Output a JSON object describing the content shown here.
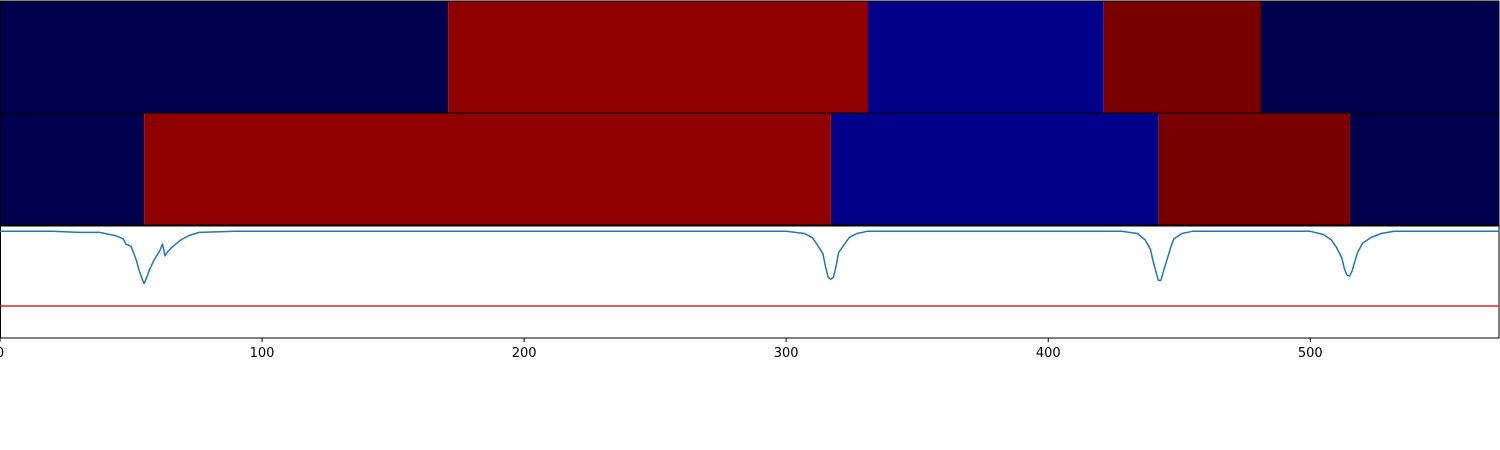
{
  "chart_data": {
    "type": "segmentation",
    "x_range": [
      0,
      572
    ],
    "x_ticks": [
      0,
      100,
      200,
      300,
      400,
      500
    ],
    "x_tick_labels": [
      "0",
      "100",
      "200",
      "300",
      "400",
      "500"
    ],
    "grid": false,
    "legend": "none",
    "rows": [
      {
        "segments": [
          {
            "start": 0,
            "end": 171,
            "color": "#00004c"
          },
          {
            "start": 171,
            "end": 331,
            "color": "#8f0000"
          },
          {
            "start": 331,
            "end": 421,
            "color": "#000088"
          },
          {
            "start": 421,
            "end": 481,
            "color": "#7a0000"
          },
          {
            "start": 481,
            "end": 572,
            "color": "#00004c"
          }
        ]
      },
      {
        "segments": [
          {
            "start": 0,
            "end": 55,
            "color": "#00004c"
          },
          {
            "start": 55,
            "end": 317,
            "color": "#8f0000"
          },
          {
            "start": 317,
            "end": 442,
            "color": "#000088"
          },
          {
            "start": 442,
            "end": 515,
            "color": "#7a0000"
          },
          {
            "start": 515,
            "end": 572,
            "color": "#00004c"
          }
        ]
      }
    ],
    "line_panel": {
      "y_range": [
        -1.0,
        0.05
      ],
      "threshold": -0.7,
      "threshold_color": "#d62728",
      "series_color": "#1f77b4",
      "series": [
        {
          "x": 0,
          "y": 0.0
        },
        {
          "x": 20,
          "y": 0.0
        },
        {
          "x": 30,
          "y": -0.01
        },
        {
          "x": 38,
          "y": -0.01
        },
        {
          "x": 44,
          "y": -0.04
        },
        {
          "x": 47,
          "y": -0.07
        },
        {
          "x": 48,
          "y": -0.12
        },
        {
          "x": 50,
          "y": -0.14
        },
        {
          "x": 52,
          "y": -0.27
        },
        {
          "x": 53,
          "y": -0.36
        },
        {
          "x": 54,
          "y": -0.43
        },
        {
          "x": 55,
          "y": -0.49
        },
        {
          "x": 56,
          "y": -0.43
        },
        {
          "x": 57,
          "y": -0.36
        },
        {
          "x": 59,
          "y": -0.26
        },
        {
          "x": 61,
          "y": -0.18
        },
        {
          "x": 62,
          "y": -0.12
        },
        {
          "x": 63,
          "y": -0.23
        },
        {
          "x": 64,
          "y": -0.19
        },
        {
          "x": 66,
          "y": -0.14
        },
        {
          "x": 69,
          "y": -0.08
        },
        {
          "x": 72,
          "y": -0.04
        },
        {
          "x": 76,
          "y": -0.01
        },
        {
          "x": 90,
          "y": 0.0
        },
        {
          "x": 300,
          "y": 0.0
        },
        {
          "x": 307,
          "y": -0.02
        },
        {
          "x": 310,
          "y": -0.06
        },
        {
          "x": 312,
          "y": -0.13
        },
        {
          "x": 314,
          "y": -0.21
        },
        {
          "x": 315,
          "y": -0.33
        },
        {
          "x": 316,
          "y": -0.43
        },
        {
          "x": 317,
          "y": -0.45
        },
        {
          "x": 318,
          "y": -0.43
        },
        {
          "x": 319,
          "y": -0.33
        },
        {
          "x": 320,
          "y": -0.2
        },
        {
          "x": 322,
          "y": -0.13
        },
        {
          "x": 324,
          "y": -0.06
        },
        {
          "x": 327,
          "y": -0.02
        },
        {
          "x": 331,
          "y": 0.0
        },
        {
          "x": 428,
          "y": 0.0
        },
        {
          "x": 434,
          "y": -0.02
        },
        {
          "x": 437,
          "y": -0.08
        },
        {
          "x": 439,
          "y": -0.17
        },
        {
          "x": 440,
          "y": -0.28
        },
        {
          "x": 441,
          "y": -0.37
        },
        {
          "x": 442,
          "y": -0.46
        },
        {
          "x": 443,
          "y": -0.46
        },
        {
          "x": 444,
          "y": -0.37
        },
        {
          "x": 445,
          "y": -0.29
        },
        {
          "x": 446,
          "y": -0.21
        },
        {
          "x": 447,
          "y": -0.13
        },
        {
          "x": 448,
          "y": -0.07
        },
        {
          "x": 451,
          "y": -0.02
        },
        {
          "x": 455,
          "y": 0.0
        },
        {
          "x": 500,
          "y": 0.0
        },
        {
          "x": 505,
          "y": -0.03
        },
        {
          "x": 508,
          "y": -0.08
        },
        {
          "x": 510,
          "y": -0.15
        },
        {
          "x": 512,
          "y": -0.25
        },
        {
          "x": 513,
          "y": -0.35
        },
        {
          "x": 514,
          "y": -0.41
        },
        {
          "x": 515,
          "y": -0.42
        },
        {
          "x": 516,
          "y": -0.37
        },
        {
          "x": 517,
          "y": -0.28
        },
        {
          "x": 518,
          "y": -0.2
        },
        {
          "x": 520,
          "y": -0.11
        },
        {
          "x": 523,
          "y": -0.06
        },
        {
          "x": 527,
          "y": -0.02
        },
        {
          "x": 532,
          "y": 0.0
        },
        {
          "x": 572,
          "y": 0.0
        }
      ]
    }
  }
}
